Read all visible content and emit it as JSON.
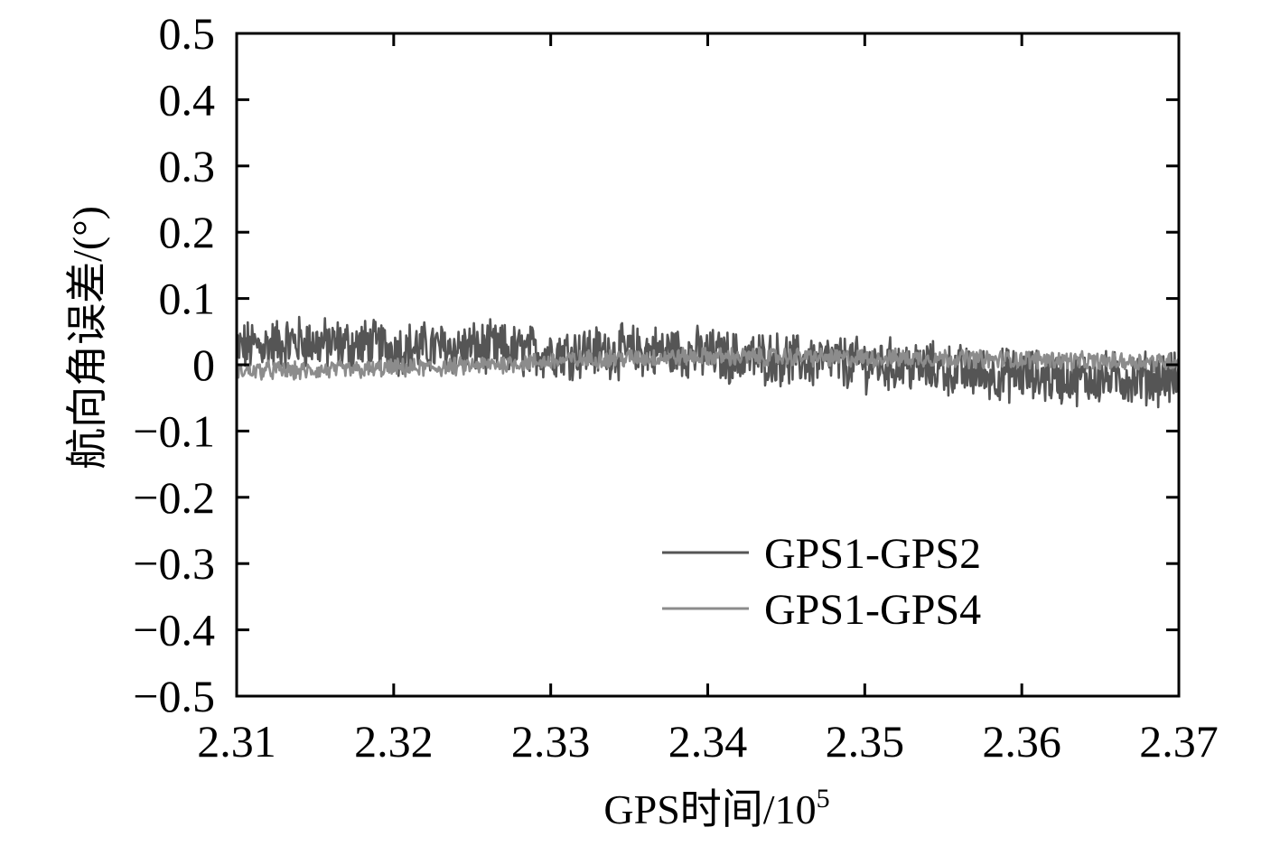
{
  "chart_data": {
    "type": "line",
    "title": "",
    "xlabel": "GPS时间/10",
    "xlabel_superscript": "5",
    "ylabel": "航向角误差/(°)",
    "xlim": [
      2.31,
      2.37
    ],
    "ylim": [
      -0.5,
      0.5
    ],
    "x_ticks": [
      2.31,
      2.32,
      2.33,
      2.34,
      2.35,
      2.36,
      2.37
    ],
    "x_tick_labels": [
      "2.31",
      "2.32",
      "2.33",
      "2.34",
      "2.35",
      "2.36",
      "2.37"
    ],
    "y_ticks": [
      0.5,
      0.4,
      0.3,
      0.2,
      0.1,
      0,
      -0.1,
      -0.2,
      -0.3,
      -0.4,
      -0.5
    ],
    "y_tick_labels": [
      "0.5",
      "0.4",
      "0.3",
      "0.2",
      "0.1",
      "0",
      "−0.1",
      "−0.2",
      "−0.3",
      "−0.4",
      "−0.5"
    ],
    "grid": false,
    "legend_position": "lower-right",
    "series": [
      {
        "name": "GPS1-GPS2",
        "color": "#555555",
        "x": [
          2.31,
          2.312,
          2.314,
          2.316,
          2.318,
          2.32,
          2.322,
          2.324,
          2.326,
          2.328,
          2.33,
          2.332,
          2.334,
          2.336,
          2.338,
          2.34,
          2.342,
          2.344,
          2.346,
          2.348,
          2.35,
          2.352,
          2.354,
          2.356,
          2.358,
          2.36,
          2.362,
          2.364,
          2.366,
          2.368,
          2.37
        ],
        "y": [
          0.025,
          0.03,
          0.035,
          0.03,
          0.03,
          0.025,
          0.025,
          0.025,
          0.025,
          0.02,
          0.02,
          0.02,
          0.02,
          0.02,
          0.02,
          0.015,
          0.01,
          0.01,
          0.005,
          0.005,
          0.0,
          0.0,
          -0.005,
          -0.01,
          -0.015,
          -0.015,
          -0.02,
          -0.02,
          -0.02,
          -0.02,
          -0.02
        ],
        "noise_amplitude": 0.035
      },
      {
        "name": "GPS1-GPS4",
        "color": "#8c8c8c",
        "x": [
          2.31,
          2.312,
          2.314,
          2.316,
          2.318,
          2.32,
          2.322,
          2.324,
          2.326,
          2.328,
          2.33,
          2.332,
          2.334,
          2.336,
          2.338,
          2.34,
          2.342,
          2.344,
          2.346,
          2.348,
          2.35,
          2.352,
          2.354,
          2.356,
          2.358,
          2.36,
          2.362,
          2.364,
          2.366,
          2.368,
          2.37
        ],
        "y": [
          -0.01,
          -0.008,
          -0.01,
          -0.008,
          -0.008,
          -0.005,
          -0.005,
          -0.003,
          0.0,
          0.003,
          0.005,
          0.008,
          0.01,
          0.01,
          0.012,
          0.012,
          0.012,
          0.012,
          0.012,
          0.01,
          0.01,
          0.01,
          0.01,
          0.01,
          0.008,
          0.008,
          0.008,
          0.005,
          0.005,
          0.005,
          0.005
        ],
        "noise_amplitude": 0.012
      }
    ]
  }
}
